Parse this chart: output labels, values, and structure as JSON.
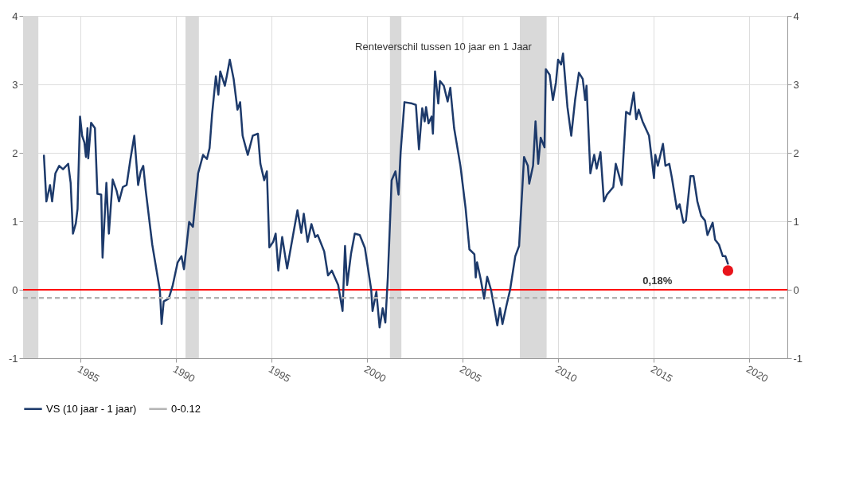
{
  "chart_data": {
    "type": "line",
    "xlim": [
      1982,
      2022
    ],
    "xticks": [
      1985,
      1990,
      1995,
      2000,
      2005,
      2010,
      2015,
      2020
    ],
    "ylim": [
      -1,
      4
    ],
    "yticks": [
      -1,
      0,
      1,
      2,
      3,
      4
    ],
    "y2lim": [
      -1,
      4
    ],
    "y2ticks": [
      -1,
      0,
      1,
      2,
      3,
      4
    ],
    "grid": true,
    "legend": "bottom",
    "line_style": "solid",
    "series": [
      {
        "name": "VS (10 jaar - 1 jaar)",
        "color": "#1d3a6b",
        "x": [
          1983.09,
          1983.22,
          1983.41,
          1983.52,
          1983.69,
          1983.89,
          1984.09,
          1984.36,
          1984.49,
          1984.61,
          1984.76,
          1984.85,
          1984.98,
          1985.09,
          1985.21,
          1985.29,
          1985.37,
          1985.41,
          1985.56,
          1985.76,
          1985.89,
          1986.09,
          1986.16,
          1986.36,
          1986.49,
          1986.69,
          1986.89,
          1987.02,
          1987.22,
          1987.42,
          1987.62,
          1987.82,
          1988.02,
          1988.16,
          1988.29,
          1988.42,
          1988.76,
          1989.16,
          1989.25,
          1989.36,
          1989.62,
          1989.82,
          1990.09,
          1990.29,
          1990.42,
          1990.69,
          1990.89,
          1991.16,
          1991.42,
          1991.62,
          1991.76,
          1991.89,
          1992.09,
          1992.22,
          1992.32,
          1992.56,
          1992.66,
          1992.82,
          1993.02,
          1993.22,
          1993.36,
          1993.49,
          1993.76,
          1994.02,
          1994.29,
          1994.42,
          1994.62,
          1994.76,
          1994.89,
          1995.09,
          1995.22,
          1995.36,
          1995.56,
          1995.82,
          1996.36,
          1996.56,
          1996.69,
          1996.89,
          1997.09,
          1997.29,
          1997.42,
          1997.76,
          1997.96,
          1998.16,
          1998.49,
          1998.72,
          1998.85,
          1998.96,
          1999.16,
          1999.36,
          1999.62,
          1999.89,
          2000.22,
          2000.29,
          2000.49,
          2000.66,
          2000.82,
          2000.96,
          2001.09,
          2001.29,
          2001.49,
          2001.65,
          2001.76,
          2001.96,
          2002.36,
          2002.56,
          2002.72,
          2002.89,
          2003.02,
          2003.09,
          2003.22,
          2003.38,
          2003.45,
          2003.56,
          2003.73,
          2003.82,
          2004.02,
          2004.22,
          2004.36,
          2004.56,
          2004.89,
          2005.16,
          2005.36,
          2005.62,
          2005.69,
          2005.76,
          2005.96,
          2006.13,
          2006.29,
          2006.49,
          2006.69,
          2006.82,
          2006.96,
          2007.09,
          2007.29,
          2007.49,
          2007.76,
          2007.96,
          2008.22,
          2008.42,
          2008.49,
          2008.69,
          2008.82,
          2008.96,
          2009.09,
          2009.29,
          2009.36,
          2009.56,
          2009.73,
          2009.89,
          2010.0,
          2010.16,
          2010.26,
          2010.49,
          2010.69,
          2010.89,
          2011.09,
          2011.29,
          2011.42,
          2011.49,
          2011.69,
          2011.89,
          2012.02,
          2012.22,
          2012.4,
          2012.56,
          2012.89,
          2013.02,
          2013.33,
          2013.56,
          2013.76,
          2013.96,
          2014.09,
          2014.22,
          2014.42,
          2014.76,
          2015.02,
          2015.09,
          2015.22,
          2015.49,
          2015.62,
          2015.82,
          2015.96,
          2016.22,
          2016.36,
          2016.56,
          2016.69,
          2016.93,
          2017.09,
          2017.29,
          2017.49,
          2017.69,
          2017.82,
          2018.09,
          2018.22,
          2018.42,
          2018.62,
          2018.76,
          2018.89
        ],
        "values": [
          1.96,
          1.29,
          1.53,
          1.29,
          1.7,
          1.81,
          1.76,
          1.84,
          1.56,
          0.82,
          0.97,
          1.18,
          2.53,
          2.25,
          2.15,
          1.94,
          2.36,
          1.92,
          2.44,
          2.36,
          1.4,
          1.39,
          0.47,
          1.56,
          0.82,
          1.61,
          1.45,
          1.29,
          1.5,
          1.53,
          1.91,
          2.25,
          1.53,
          1.73,
          1.81,
          1.45,
          0.66,
          -0.01,
          -0.5,
          -0.17,
          -0.13,
          0.05,
          0.4,
          0.49,
          0.3,
          0.99,
          0.92,
          1.7,
          1.97,
          1.91,
          2.07,
          2.56,
          3.12,
          2.85,
          3.19,
          2.98,
          3.12,
          3.36,
          3.08,
          2.63,
          2.74,
          2.25,
          1.97,
          2.25,
          2.28,
          1.84,
          1.6,
          1.73,
          0.62,
          0.7,
          0.82,
          0.28,
          0.77,
          0.31,
          1.16,
          0.83,
          1.11,
          0.7,
          0.96,
          0.77,
          0.8,
          0.56,
          0.21,
          0.28,
          0.07,
          -0.31,
          0.64,
          0.07,
          0.52,
          0.82,
          0.8,
          0.61,
          0.0,
          -0.31,
          -0.03,
          -0.55,
          -0.27,
          -0.48,
          0.18,
          1.6,
          1.73,
          1.39,
          2.01,
          2.74,
          2.72,
          2.7,
          2.05,
          2.65,
          2.46,
          2.67,
          2.43,
          2.53,
          2.28,
          3.19,
          2.72,
          3.05,
          2.98,
          2.75,
          2.95,
          2.36,
          1.81,
          1.19,
          0.59,
          0.52,
          0.18,
          0.4,
          0.14,
          -0.13,
          0.19,
          0.0,
          -0.31,
          -0.52,
          -0.27,
          -0.5,
          -0.24,
          0.0,
          0.49,
          0.64,
          1.94,
          1.81,
          1.55,
          1.81,
          2.46,
          1.84,
          2.22,
          2.08,
          3.22,
          3.14,
          2.77,
          3.03,
          3.36,
          3.29,
          3.45,
          2.67,
          2.25,
          2.77,
          3.17,
          3.08,
          2.77,
          2.98,
          1.7,
          1.97,
          1.77,
          2.01,
          1.29,
          1.39,
          1.5,
          1.84,
          1.53,
          2.6,
          2.56,
          2.88,
          2.49,
          2.63,
          2.46,
          2.25,
          1.63,
          1.97,
          1.81,
          2.13,
          1.81,
          1.84,
          1.63,
          1.18,
          1.25,
          0.98,
          1.01,
          1.66,
          1.66,
          1.29,
          1.08,
          1.01,
          0.8,
          0.98,
          0.73,
          0.66,
          0.49,
          0.49,
          0.38
        ]
      },
      {
        "name": "0-0.12",
        "color": "#b4b4b4",
        "line_style": "dashed",
        "x": [
          1982,
          2022
        ],
        "values": [
          -0.12,
          -0.12
        ]
      },
      {
        "type": "scatter",
        "color": "#e8141b",
        "x": [
          2018.89
        ],
        "values": [
          0.28
        ]
      }
    ],
    "ref_lines": [
      {
        "axis": "y",
        "value": 0,
        "color": "#ff0000"
      }
    ],
    "bands": [
      {
        "axis": "x",
        "from": 1982,
        "to": 1982.8,
        "color": "#d9d9d9"
      },
      {
        "axis": "x",
        "from": 1990.5,
        "to": 1991.2,
        "color": "#d9d9d9"
      },
      {
        "axis": "x",
        "from": 2001.2,
        "to": 2001.8,
        "color": "#d9d9d9"
      },
      {
        "axis": "x",
        "from": 2008.0,
        "to": 2009.4,
        "color": "#d9d9d9"
      }
    ],
    "annotations": [
      "Renteverschil tussen 10 jaar en 1 Jaar",
      "0,18%"
    ]
  }
}
